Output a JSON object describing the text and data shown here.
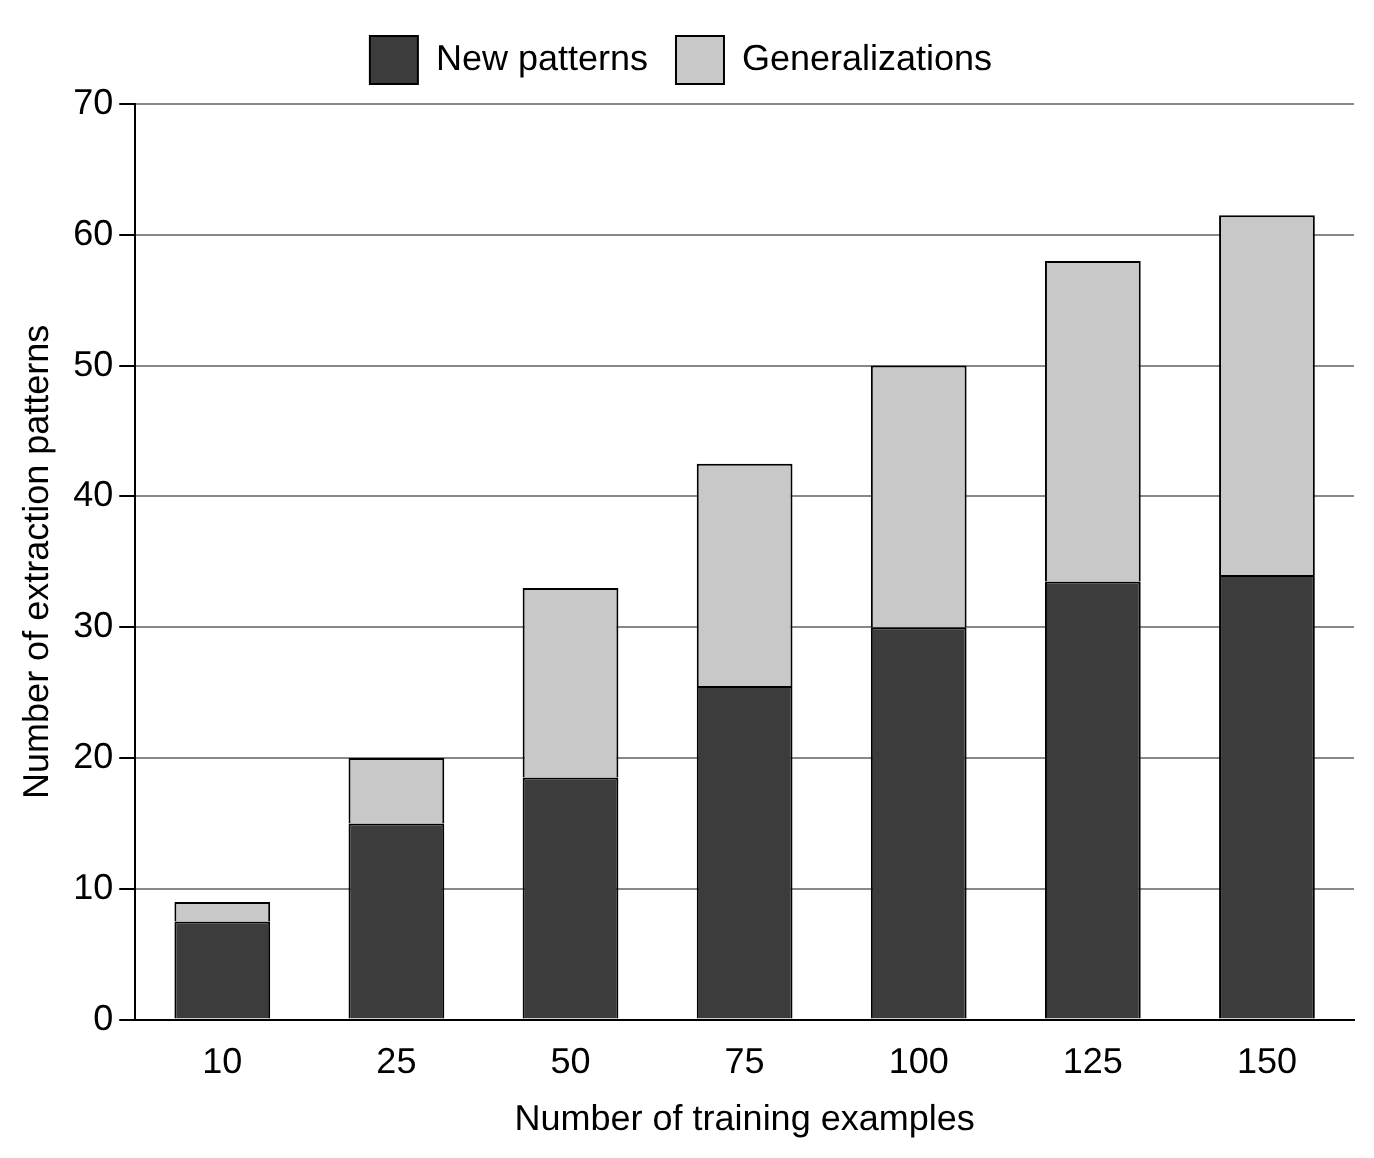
{
  "chart_data": {
    "type": "bar",
    "stacked": true,
    "xlabel": "Number of training examples",
    "ylabel": "Number of extraction patterns",
    "categories": [
      "10",
      "25",
      "50",
      "75",
      "100",
      "125",
      "150"
    ],
    "series": [
      {
        "name": "New patterns",
        "color": "#3c3c3c",
        "values": [
          7.5,
          15,
          18.5,
          25.5,
          30,
          33.5,
          34
        ]
      },
      {
        "name": "Generalizations",
        "color": "#c8c8c8",
        "values": [
          1.5,
          5,
          14.5,
          17,
          20,
          24.5,
          27.5
        ]
      }
    ],
    "ylim": [
      0,
      70
    ],
    "yticks": [
      0,
      10,
      20,
      30,
      40,
      50,
      60,
      70
    ],
    "grid": "y",
    "legend": "top"
  }
}
